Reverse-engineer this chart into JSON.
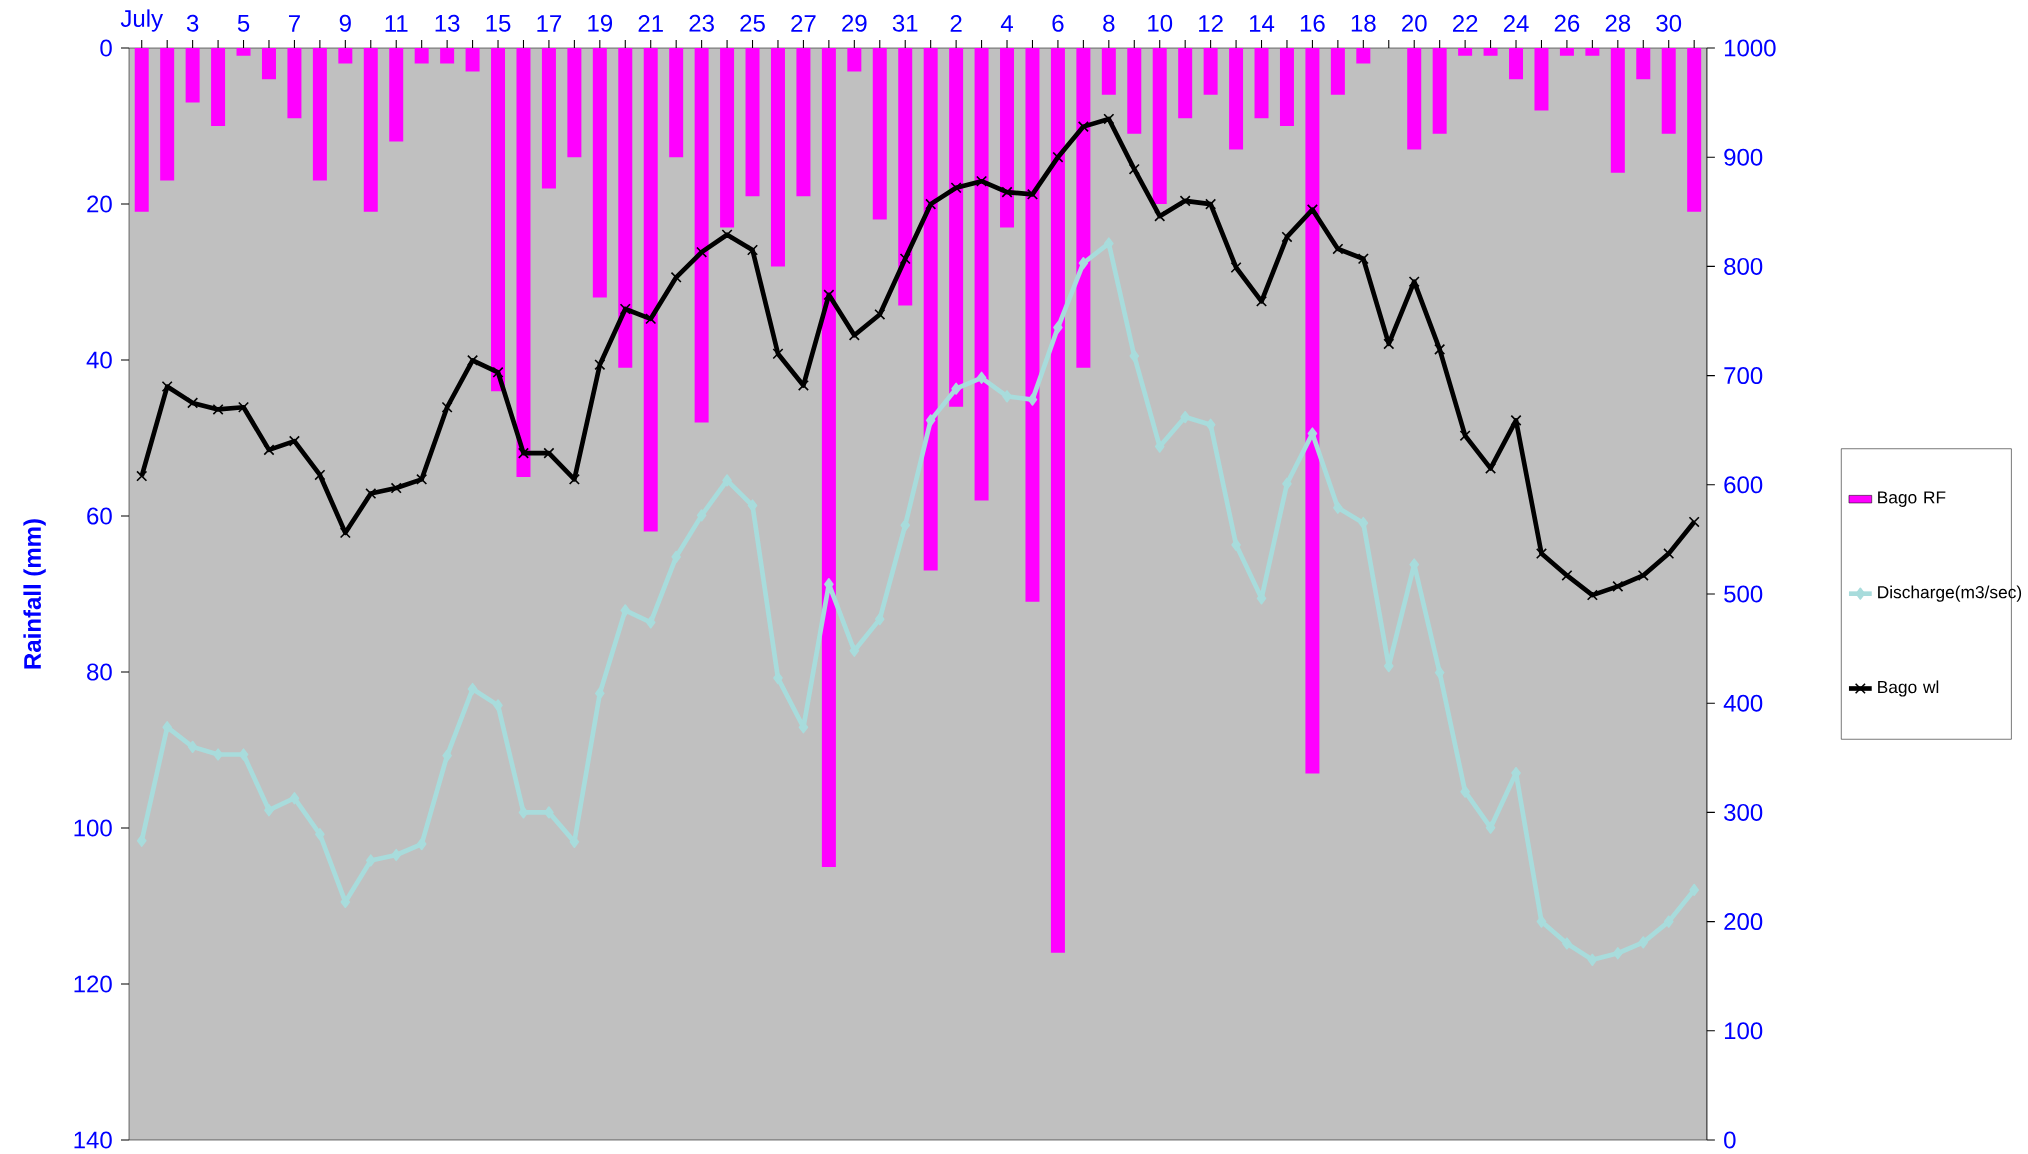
{
  "chart_data": {
    "type": "bar",
    "ylabel": "Rainfall (mm)",
    "categories": [
      "July",
      null,
      "3",
      null,
      "5",
      null,
      "7",
      null,
      "9",
      null,
      "11",
      null,
      "13",
      null,
      "15",
      null,
      "17",
      null,
      "19",
      null,
      "21",
      null,
      "23",
      null,
      "25",
      null,
      "27",
      null,
      "29",
      null,
      "31",
      null,
      "2",
      null,
      "4",
      null,
      "6",
      null,
      "8",
      null,
      "10",
      null,
      "12",
      null,
      "14",
      null,
      "16",
      null,
      "18",
      null,
      "20",
      null,
      "22",
      null,
      "24",
      null,
      "26",
      null,
      "28",
      null,
      "30",
      null
    ],
    "ylim": [
      140,
      0
    ],
    "yticks": [
      0,
      20,
      40,
      60,
      80,
      100,
      120,
      140
    ],
    "y2lim": [
      0,
      1000
    ],
    "y2ticks": [
      0,
      100,
      200,
      300,
      400,
      500,
      600,
      700,
      800,
      900,
      1000
    ],
    "legend": "right",
    "series": [
      {
        "name": "Bago  RF",
        "color": "#ff00ff",
        "values": [
          21,
          17,
          7,
          10,
          1,
          4,
          9,
          17,
          2,
          21,
          12,
          2,
          2,
          3,
          44,
          55,
          18,
          14,
          32,
          41,
          62,
          14,
          48,
          23,
          19,
          28,
          19,
          105,
          3,
          22,
          33,
          67,
          46,
          58,
          23,
          71,
          116,
          41,
          6,
          11,
          20,
          9,
          6,
          13,
          9,
          10,
          93,
          6,
          2,
          0,
          13,
          11,
          1,
          1,
          4,
          8,
          1,
          1,
          16,
          4,
          11,
          21
        ]
      },
      {
        "name": "Discharge(m3/sec)",
        "type": "line",
        "axis": "y2",
        "marker": "diamond",
        "color": "#a8dcdc",
        "values": [
          274,
          378,
          360,
          353,
          353,
          302,
          313,
          280,
          218,
          256,
          261,
          271,
          352,
          413,
          398,
          300,
          300,
          273,
          409,
          485,
          474,
          534,
          572,
          604,
          581,
          423,
          378,
          509,
          448,
          477,
          563,
          659,
          688,
          698,
          681,
          678,
          744,
          803,
          821,
          718,
          635,
          662,
          655,
          545,
          496,
          601,
          647,
          579,
          565,
          434,
          527,
          428,
          319,
          286,
          336,
          200,
          180,
          165,
          171,
          181,
          200,
          229
        ]
      },
      {
        "name": "Bago wl",
        "type": "line",
        "axis": "y2",
        "marker": "cross",
        "color": "#000000",
        "values": [
          608,
          690,
          675,
          669,
          671,
          632,
          640,
          609,
          556,
          592,
          597,
          605,
          671,
          714,
          703,
          629,
          629,
          605,
          710,
          761,
          752,
          790,
          813,
          829,
          815,
          720,
          691,
          774,
          737,
          756,
          807,
          857,
          872,
          878,
          868,
          866,
          900,
          928,
          935,
          889,
          846,
          860,
          857,
          799,
          768,
          827,
          852,
          816,
          807,
          729,
          786,
          724,
          645,
          615,
          659,
          537,
          517,
          499,
          507,
          517,
          537,
          566
        ]
      }
    ]
  }
}
